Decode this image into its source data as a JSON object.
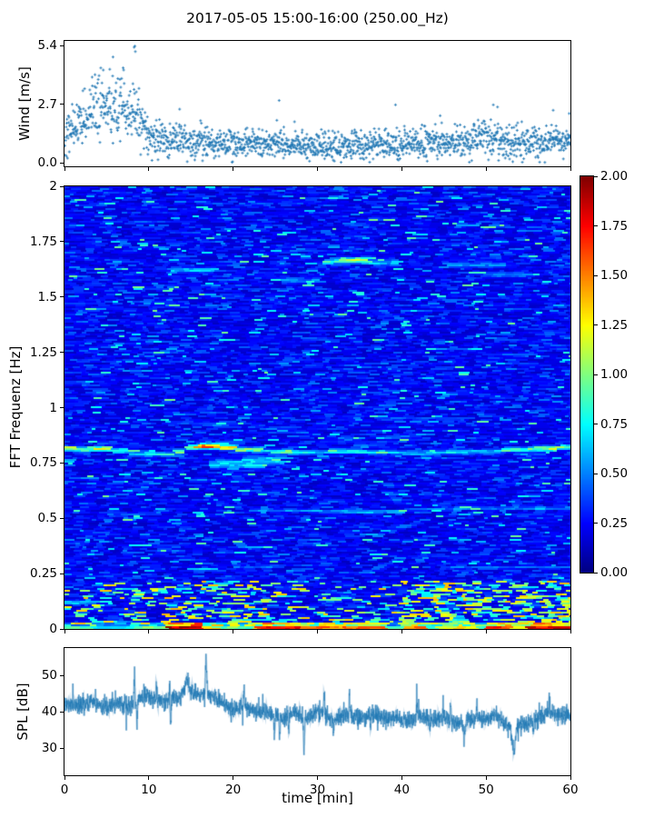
{
  "title": "2017-05-05 15:00-16:00 (250.00_Hz)",
  "colors": {
    "accent": "#1f77b4",
    "spine": "#000000",
    "background": "#ffffff",
    "colormap_low": "#000080",
    "colormap_high": "#800000"
  },
  "chart_data": [
    {
      "type": "scatter",
      "id": "wind",
      "ylabel": "Wind [m/s]",
      "marker": "+",
      "color": "#1f77b4",
      "xlim": [
        0,
        60
      ],
      "ylim": [
        -0.15,
        5.62
      ],
      "yticks": {
        "values": [
          0.0,
          2.7,
          5.4
        ],
        "labels": [
          "0.0",
          "2.7",
          "5.4"
        ]
      },
      "xticks": {
        "values": [
          0,
          10,
          20,
          30,
          40,
          50,
          60
        ],
        "labels": []
      },
      "n_points": 1750,
      "envelope_t": [
        0,
        1,
        2,
        3,
        4,
        5,
        6,
        7,
        8,
        8.7,
        9.5,
        10.5,
        12,
        15,
        20,
        25,
        30,
        35,
        40,
        45,
        48,
        50,
        52,
        55,
        58,
        60
      ],
      "envelope_mean": [
        1.3,
        1.7,
        2.1,
        2.4,
        2.55,
        2.6,
        2.65,
        2.6,
        2.55,
        2.2,
        1.6,
        1.15,
        1.0,
        0.95,
        0.9,
        0.85,
        0.8,
        0.9,
        0.9,
        0.95,
        1.0,
        1.25,
        1.0,
        0.95,
        1.05,
        1.0
      ],
      "envelope_spread": [
        0.5,
        0.55,
        0.6,
        0.65,
        0.7,
        0.7,
        0.7,
        0.75,
        0.75,
        0.7,
        0.6,
        0.45,
        0.4,
        0.38,
        0.35,
        0.33,
        0.32,
        0.35,
        0.35,
        0.35,
        0.38,
        0.45,
        0.38,
        0.35,
        0.38,
        0.35
      ],
      "outliers": [
        [
          8.3,
          5.4
        ],
        [
          8.2,
          5.35
        ],
        [
          8.35,
          5.15
        ],
        [
          5.7,
          4.9
        ],
        [
          4.55,
          4.3
        ],
        [
          6.9,
          4.4
        ],
        [
          25.4,
          2.9
        ],
        [
          13.6,
          2.5
        ],
        [
          39.2,
          2.7
        ],
        [
          44.5,
          2.2
        ],
        [
          50.8,
          2.7
        ],
        [
          51.3,
          2.6
        ],
        [
          57.9,
          2.45
        ],
        [
          59.8,
          2.3
        ]
      ]
    },
    {
      "type": "heatmap",
      "id": "spectrogram",
      "ylabel": "FFT Frequenz [Hz]",
      "xlim": [
        0,
        60
      ],
      "ylim": [
        0,
        2
      ],
      "yticks": {
        "values": [
          0,
          0.25,
          0.5,
          0.75,
          1,
          1.25,
          1.5,
          1.75,
          2
        ],
        "labels": [
          "0",
          "0.25",
          "0.5",
          "0.75",
          "1",
          "1.25",
          "1.5",
          "1.75",
          "2"
        ]
      },
      "xticks": {
        "values": [
          0,
          10,
          20,
          30,
          40,
          50,
          60
        ],
        "labels": []
      },
      "colormap": "jet",
      "vmin": 0,
      "vmax": 2,
      "colorbar": {
        "tick_values": [
          2.0,
          1.75,
          1.5,
          1.25,
          1.0,
          0.75,
          0.5,
          0.25,
          0.0
        ],
        "tick_labels": [
          "2.00",
          "1.75",
          "1.50",
          "1.25",
          "1.00",
          "0.75",
          "0.50",
          "0.25",
          "0.00"
        ]
      },
      "noise": {
        "base": 0.13,
        "sigma": 0.16,
        "fleck_prob": 0.035,
        "fleck_min": 0.55,
        "fleck_range": 0.45
      },
      "bands": [
        {
          "name": "surface-wave-band-0.8Hz",
          "h": 0.018,
          "segments": [
            [
              0,
              1.5,
              0.815,
              1.35
            ],
            [
              1.5,
              3,
              0.81,
              1.0
            ],
            [
              3,
              5.5,
              0.815,
              1.25
            ],
            [
              5.5,
              8,
              0.805,
              0.95
            ],
            [
              8,
              13,
              0.79,
              0.85
            ],
            [
              13,
              14.5,
              0.8,
              1.1
            ],
            [
              14.5,
              16,
              0.82,
              1.45
            ],
            [
              16,
              18,
              0.825,
              1.75
            ],
            [
              18,
              20.5,
              0.82,
              1.5
            ],
            [
              20.5,
              24,
              0.81,
              1.25
            ],
            [
              24,
              27,
              0.8,
              1.15
            ],
            [
              27,
              31,
              0.798,
              0.85
            ],
            [
              31,
              36,
              0.803,
              0.95
            ],
            [
              36,
              40,
              0.8,
              0.8
            ],
            [
              40,
              45,
              0.795,
              0.75
            ],
            [
              45,
              52,
              0.8,
              0.85
            ],
            [
              52,
              56,
              0.81,
              1.05
            ],
            [
              56,
              59,
              0.815,
              1.4
            ],
            [
              59,
              60,
              0.82,
              1.1
            ]
          ]
        },
        {
          "name": "cluster-0.74Hz",
          "h": 0.03,
          "segments": [
            [
              17,
              24,
              0.745,
              0.85
            ],
            [
              21,
              26,
              0.76,
              0.9
            ]
          ]
        },
        {
          "name": "band-1.66Hz",
          "h": 0.02,
          "segments": [
            [
              12,
              18,
              1.62,
              0.75
            ],
            [
              31,
              36,
              1.66,
              0.95
            ],
            [
              32.5,
              36.5,
              1.668,
              1.2
            ],
            [
              36,
              40,
              1.655,
              0.8
            ],
            [
              45,
              52,
              1.645,
              0.6
            ],
            [
              50,
              55,
              1.6,
              0.62
            ],
            [
              26,
              30,
              1.575,
              0.65
            ]
          ]
        },
        {
          "name": "band-0.53Hz",
          "h": 0.012,
          "segments": [
            [
              5,
              12,
              0.52,
              0.5
            ],
            [
              22,
              30,
              0.535,
              0.7
            ],
            [
              30,
              40,
              0.53,
              0.75
            ],
            [
              40,
              47,
              0.54,
              0.6
            ],
            [
              47,
              60,
              0.545,
              0.7
            ]
          ]
        },
        {
          "name": "band-0.28Hz",
          "h": 0.01,
          "segments": [
            [
              14,
              18,
              0.27,
              0.85
            ],
            [
              20,
              25,
              0.28,
              0.55
            ],
            [
              45,
              60,
              0.28,
              0.5
            ]
          ]
        },
        {
          "name": "band-0.95Hz",
          "h": 0.012,
          "segments": [
            [
              12,
              20,
              0.93,
              0.5
            ],
            [
              37,
              48,
              0.95,
              0.5
            ]
          ]
        },
        {
          "name": "band-0.12Hz-left",
          "h": 0.015,
          "segments": [
            [
              0,
              4,
              0.12,
              0.8
            ]
          ]
        }
      ],
      "bottom_band": {
        "f_max": 0.028,
        "segments": [
          [
            0,
            3,
            0.9
          ],
          [
            3,
            8,
            0.7
          ],
          [
            8,
            12,
            1.0
          ],
          [
            12,
            16.5,
            1.95
          ],
          [
            16.5,
            18,
            1.35
          ],
          [
            18,
            23,
            0.9
          ],
          [
            23,
            28,
            1.75
          ],
          [
            28,
            34.5,
            1.55
          ],
          [
            34.5,
            38,
            1.7
          ],
          [
            38,
            40,
            0.9
          ],
          [
            40,
            43,
            1.5
          ],
          [
            43,
            44,
            0.8
          ],
          [
            44,
            49,
            1.25
          ],
          [
            49,
            50,
            0.9
          ],
          [
            50,
            53,
            1.7
          ],
          [
            53,
            55,
            1.3
          ],
          [
            55,
            60,
            1.85
          ]
        ]
      },
      "low_zone": {
        "f_max": 0.22,
        "base_prob": 0.1,
        "hot_ranges": [
          [
            14,
            26,
            0.22
          ],
          [
            40,
            60,
            0.25
          ]
        ],
        "value_min": 0.65,
        "value_range": 0.75
      }
    },
    {
      "type": "line",
      "id": "spl",
      "ylabel": "SPL [dB]",
      "xlabel": "time [min]",
      "color": "#1f77b4",
      "xlim": [
        0,
        60
      ],
      "ylim": [
        22.5,
        57.5
      ],
      "yticks": {
        "values": [
          30,
          40,
          50
        ],
        "labels": [
          "30",
          "40",
          "50"
        ]
      },
      "xticks": {
        "values": [
          0,
          10,
          20,
          30,
          40,
          50,
          60
        ],
        "labels": [
          "0",
          "10",
          "20",
          "30",
          "40",
          "50",
          "60"
        ]
      },
      "n_points": 3200,
      "noise_sd": 1.15,
      "envelope_t": [
        0,
        2,
        4,
        6,
        8,
        9,
        10,
        12,
        13,
        14,
        15,
        16,
        16.8,
        17.5,
        19,
        21,
        23,
        25,
        27,
        29,
        30,
        32,
        34,
        36,
        38,
        40,
        42,
        44,
        46,
        48,
        50,
        52,
        53.3,
        54,
        56,
        58,
        60
      ],
      "envelope_mean": [
        42,
        41.8,
        42.3,
        42,
        41.8,
        43,
        44,
        42.8,
        44,
        45,
        44.3,
        44,
        46,
        44,
        42.3,
        41,
        40,
        39,
        39.3,
        38.8,
        39.2,
        38.6,
        39,
        38.2,
        38.4,
        38,
        38.4,
        37.8,
        37.6,
        38,
        38.3,
        37.4,
        35.2,
        36.4,
        38.2,
        39.3,
        39
      ],
      "spikes": [
        [
          8.3,
          8.5,
          0.12
        ],
        [
          10.9,
          7,
          0.08
        ],
        [
          14.5,
          5,
          0.5
        ],
        [
          16.8,
          11.5,
          0.18
        ],
        [
          21.3,
          5.5,
          0.1
        ],
        [
          30.8,
          9.5,
          0.1
        ],
        [
          33.8,
          8.5,
          0.1
        ],
        [
          41.8,
          7,
          0.1
        ],
        [
          45.8,
          6.5,
          0.1
        ],
        [
          48.9,
          6,
          0.08
        ],
        [
          57.5,
          5.5,
          0.1
        ]
      ],
      "dips": [
        [
          8.6,
          -7.5,
          0.1
        ],
        [
          12.6,
          -8,
          0.1
        ],
        [
          24.9,
          -7.5,
          0.12
        ],
        [
          25.5,
          -6,
          0.1
        ],
        [
          26.6,
          -5.5,
          0.1
        ],
        [
          28.4,
          -12.5,
          0.14
        ],
        [
          31.9,
          -5.5,
          0.1
        ],
        [
          36.3,
          -5,
          0.1
        ],
        [
          43.3,
          -4.5,
          0.1
        ],
        [
          47.4,
          -7,
          0.25
        ],
        [
          53.3,
          -7,
          0.4
        ],
        [
          55.6,
          -4,
          0.1
        ]
      ]
    }
  ]
}
